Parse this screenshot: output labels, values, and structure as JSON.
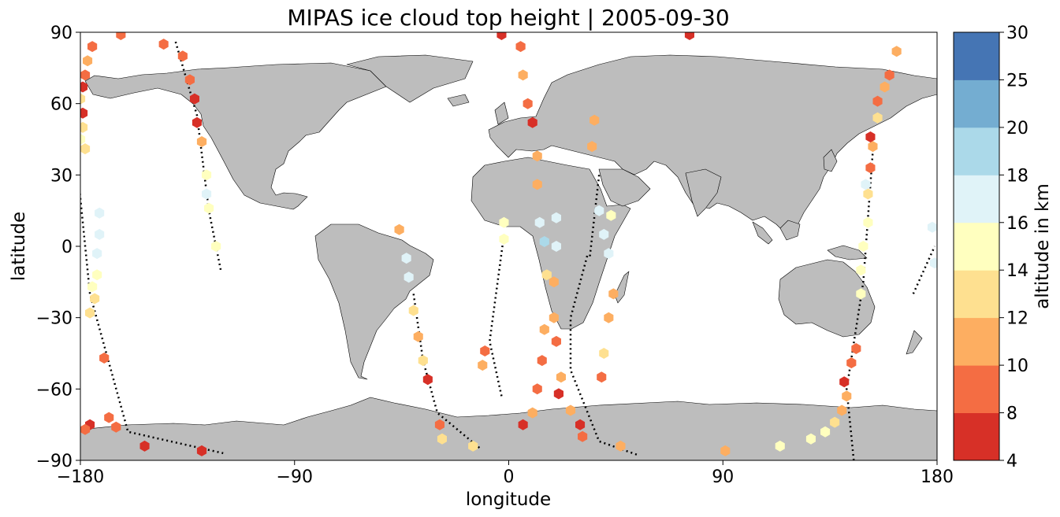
{
  "title": "MIPAS ice cloud top height | 2005-09-30",
  "xlabel": "longitude",
  "ylabel": "latitude",
  "colorbar_label": "altitude in km",
  "x_ticks": [
    "−180",
    "−90",
    "0",
    "90",
    "180"
  ],
  "y_ticks": [
    "90",
    "60",
    "30",
    "0",
    "−30",
    "−60",
    "−90"
  ],
  "colorbar": {
    "bounds": [
      "4",
      "8",
      "10",
      "12",
      "14",
      "16",
      "18",
      "20",
      "25",
      "30"
    ],
    "colors": [
      "#a50026",
      "#d73027",
      "#f46d43",
      "#fdae61",
      "#fee090",
      "#ffffbf",
      "#e0f3f8",
      "#abd9e9",
      "#74add1",
      "#4575b4",
      "#313695"
    ]
  },
  "land_color": "#bdbdbd",
  "chart_data": {
    "type": "scatter",
    "projection": "plate-carree",
    "title": "MIPAS ice cloud top height | 2005-09-30",
    "xlabel": "longitude",
    "ylabel": "latitude",
    "xlim": [
      -180,
      180
    ],
    "ylim": [
      -90,
      90
    ],
    "color_variable": "altitude in km",
    "color_bins": [
      4,
      8,
      10,
      12,
      14,
      16,
      18,
      20,
      25,
      30
    ],
    "bin_colors": [
      "#a50026",
      "#d73027",
      "#f46d43",
      "#fdae61",
      "#fee090",
      "#ffffbf",
      "#e0f3f8",
      "#abd9e9",
      "#74add1",
      "#4575b4",
      "#313695"
    ],
    "points": [
      {
        "lon": -175,
        "lat": 84,
        "alt": 9
      },
      {
        "lon": -177,
        "lat": 78,
        "alt": 11
      },
      {
        "lon": -178,
        "lat": 72,
        "alt": 9
      },
      {
        "lon": -179,
        "lat": 67,
        "alt": 7
      },
      {
        "lon": -180,
        "lat": 62,
        "alt": 12
      },
      {
        "lon": -179,
        "lat": 56,
        "alt": 7
      },
      {
        "lon": -179,
        "lat": 50,
        "alt": 13
      },
      {
        "lon": -180,
        "lat": 45,
        "alt": 14
      },
      {
        "lon": -178,
        "lat": 41,
        "alt": 13
      },
      {
        "lon": -172,
        "lat": 14,
        "alt": 16
      },
      {
        "lon": -172,
        "lat": 5,
        "alt": 16
      },
      {
        "lon": -173,
        "lat": -3,
        "alt": 16
      },
      {
        "lon": -173,
        "lat": -12,
        "alt": 15
      },
      {
        "lon": -174,
        "lat": -22,
        "alt": 13
      },
      {
        "lon": -176,
        "lat": -28,
        "alt": 13
      },
      {
        "lon": -175,
        "lat": -17,
        "alt": 14
      },
      {
        "lon": -170,
        "lat": -47,
        "alt": 9
      },
      {
        "lon": -176,
        "lat": -75,
        "alt": 7
      },
      {
        "lon": -178,
        "lat": -77,
        "alt": 9
      },
      {
        "lon": -168,
        "lat": -72,
        "alt": 9
      },
      {
        "lon": -165,
        "lat": -76,
        "alt": 9
      },
      {
        "lon": -153,
        "lat": -84,
        "alt": 7
      },
      {
        "lon": -163,
        "lat": 89,
        "alt": 9
      },
      {
        "lon": -145,
        "lat": 85,
        "alt": 9
      },
      {
        "lon": -137,
        "lat": 80,
        "alt": 9
      },
      {
        "lon": -134,
        "lat": 70,
        "alt": 9
      },
      {
        "lon": -132,
        "lat": 62,
        "alt": 7
      },
      {
        "lon": -131,
        "lat": 52,
        "alt": 7
      },
      {
        "lon": -129,
        "lat": 44,
        "alt": 11
      },
      {
        "lon": -127,
        "lat": 30,
        "alt": 14
      },
      {
        "lon": -127,
        "lat": 22,
        "alt": 17
      },
      {
        "lon": -126,
        "lat": 16,
        "alt": 15
      },
      {
        "lon": -123,
        "lat": 0,
        "alt": 15
      },
      {
        "lon": -129,
        "lat": -86,
        "alt": 7
      },
      {
        "lon": -46,
        "lat": 7,
        "alt": 11
      },
      {
        "lon": -43,
        "lat": -5,
        "alt": 16
      },
      {
        "lon": -42,
        "lat": -13,
        "alt": 16
      },
      {
        "lon": -40,
        "lat": -27,
        "alt": 13
      },
      {
        "lon": -38,
        "lat": -38,
        "alt": 11
      },
      {
        "lon": -36,
        "lat": -48,
        "alt": 13
      },
      {
        "lon": -34,
        "lat": -56,
        "alt": 7
      },
      {
        "lon": -29,
        "lat": -75,
        "alt": 9
      },
      {
        "lon": -28,
        "lat": -81,
        "alt": 13
      },
      {
        "lon": -15,
        "lat": -84,
        "alt": 13
      },
      {
        "lon": -10,
        "lat": -44,
        "alt": 9
      },
      {
        "lon": -11,
        "lat": -50,
        "alt": 11
      },
      {
        "lon": -2,
        "lat": 10,
        "alt": 15
      },
      {
        "lon": -2,
        "lat": 3,
        "alt": 15
      },
      {
        "lon": -3,
        "lat": 89,
        "alt": 7
      },
      {
        "lon": 5,
        "lat": 84,
        "alt": 9
      },
      {
        "lon": 6,
        "lat": 72,
        "alt": 11
      },
      {
        "lon": 8,
        "lat": 60,
        "alt": 9
      },
      {
        "lon": 10,
        "lat": 52,
        "alt": 7
      },
      {
        "lon": 12,
        "lat": 38,
        "alt": 11
      },
      {
        "lon": 12,
        "lat": 26,
        "alt": 11
      },
      {
        "lon": 13,
        "lat": 10,
        "alt": 17
      },
      {
        "lon": 15,
        "lat": 2,
        "alt": 18
      },
      {
        "lon": 16,
        "lat": -12,
        "alt": 13
      },
      {
        "lon": 15,
        "lat": -35,
        "alt": 11
      },
      {
        "lon": 14,
        "lat": -48,
        "alt": 9
      },
      {
        "lon": 12,
        "lat": -60,
        "alt": 9
      },
      {
        "lon": 10,
        "lat": -70,
        "alt": 11
      },
      {
        "lon": 6,
        "lat": -75,
        "alt": 7
      },
      {
        "lon": 20,
        "lat": 12,
        "alt": 16
      },
      {
        "lon": 20,
        "lat": 0,
        "alt": 16
      },
      {
        "lon": 19,
        "lat": -15,
        "alt": 11
      },
      {
        "lon": 19,
        "lat": -30,
        "alt": 11
      },
      {
        "lon": 20,
        "lat": -40,
        "alt": 9
      },
      {
        "lon": 22,
        "lat": -55,
        "alt": 11
      },
      {
        "lon": 21,
        "lat": -62,
        "alt": 7
      },
      {
        "lon": 26,
        "lat": -69,
        "alt": 11
      },
      {
        "lon": 30,
        "lat": -75,
        "alt": 7
      },
      {
        "lon": 31,
        "lat": -80,
        "alt": 9
      },
      {
        "lon": 36,
        "lat": 53,
        "alt": 11
      },
      {
        "lon": 35,
        "lat": 42,
        "alt": 11
      },
      {
        "lon": 38,
        "lat": 15,
        "alt": 16
      },
      {
        "lon": 40,
        "lat": 5,
        "alt": 16
      },
      {
        "lon": 43,
        "lat": 13,
        "alt": 15
      },
      {
        "lon": 42,
        "lat": -3,
        "alt": 16
      },
      {
        "lon": 44,
        "lat": -20,
        "alt": 11
      },
      {
        "lon": 42,
        "lat": -30,
        "alt": 11
      },
      {
        "lon": 40,
        "lat": -45,
        "alt": 13
      },
      {
        "lon": 39,
        "lat": -55,
        "alt": 9
      },
      {
        "lon": 47,
        "lat": -84,
        "alt": 11
      },
      {
        "lon": 76,
        "lat": 89,
        "alt": 7
      },
      {
        "lon": 91,
        "lat": -86,
        "alt": 11
      },
      {
        "lon": 114,
        "lat": -84,
        "alt": 15
      },
      {
        "lon": 127,
        "lat": -81,
        "alt": 15
      },
      {
        "lon": 133,
        "lat": -78,
        "alt": 15
      },
      {
        "lon": 137,
        "lat": -74,
        "alt": 13
      },
      {
        "lon": 140,
        "lat": -69,
        "alt": 11
      },
      {
        "lon": 142,
        "lat": -63,
        "alt": 11
      },
      {
        "lon": 141,
        "lat": -57,
        "alt": 7
      },
      {
        "lon": 144,
        "lat": -49,
        "alt": 9
      },
      {
        "lon": 146,
        "lat": -43,
        "alt": 9
      },
      {
        "lon": 148,
        "lat": -20,
        "alt": 15
      },
      {
        "lon": 148,
        "lat": -10,
        "alt": 15
      },
      {
        "lon": 149,
        "lat": 0,
        "alt": 15
      },
      {
        "lon": 151,
        "lat": 10,
        "alt": 15
      },
      {
        "lon": 151,
        "lat": 22,
        "alt": 13
      },
      {
        "lon": 150,
        "lat": 26,
        "alt": 16
      },
      {
        "lon": 152,
        "lat": 33,
        "alt": 9
      },
      {
        "lon": 153,
        "lat": 42,
        "alt": 11
      },
      {
        "lon": 152,
        "lat": 46,
        "alt": 7
      },
      {
        "lon": 155,
        "lat": 54,
        "alt": 13
      },
      {
        "lon": 155,
        "lat": 61,
        "alt": 9
      },
      {
        "lon": 158,
        "lat": 67,
        "alt": 11
      },
      {
        "lon": 160,
        "lat": 72,
        "alt": 9
      },
      {
        "lon": 163,
        "lat": 82,
        "alt": 11
      },
      {
        "lon": 178,
        "lat": 8,
        "alt": 16
      },
      {
        "lon": 179,
        "lat": -7,
        "alt": 16
      }
    ]
  }
}
